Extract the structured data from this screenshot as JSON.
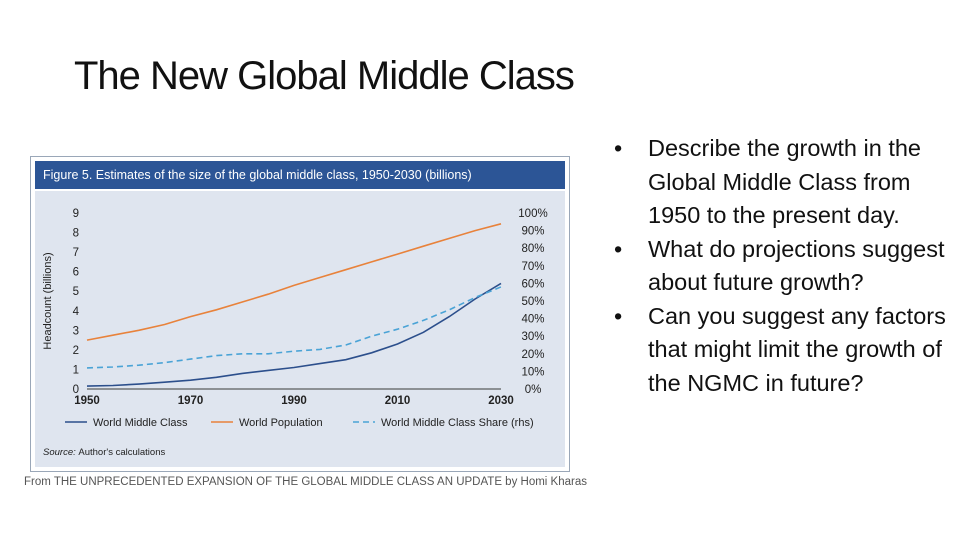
{
  "slide": {
    "title": "The New Global Middle Class",
    "caption": "From THE UNPRECEDENTED EXPANSION OF THE GLOBAL MIDDLE CLASS AN UPDATE by Homi Kharas",
    "bullets": [
      "Describe the growth in the Global Middle Class from 1950 to the present day.",
      "What do projections suggest about future growth?",
      "Can you suggest any factors that might limit the growth of the NGMC in future?"
    ],
    "bullet_symbol": "•"
  },
  "colors": {
    "header_bg": "#2c5596",
    "plot_bg": "#dfe5ef",
    "middle_class": "#2c4f8c",
    "population": "#e8823b",
    "share": "#4aa3d6"
  },
  "chart_data": {
    "type": "line",
    "title": "Figure 5. Estimates of the size of the global middle class, 1950-2030 (billions)",
    "ylabel": "Headcount (billions)",
    "xlim": [
      1950,
      2030
    ],
    "ylim": [
      0,
      9
    ],
    "y2lim": [
      0,
      100
    ],
    "x_ticks": [
      "1950",
      "1970",
      "1990",
      "2010",
      "2030"
    ],
    "y_ticks": [
      "0",
      "1",
      "2",
      "3",
      "4",
      "5",
      "6",
      "7",
      "8",
      "9"
    ],
    "y2_ticks": [
      "0%",
      "10%",
      "20%",
      "30%",
      "40%",
      "50%",
      "60%",
      "70%",
      "80%",
      "90%",
      "100%"
    ],
    "source_label": "Source:",
    "source_text": "Author's calculations",
    "series": [
      {
        "name": "World Middle Class",
        "axis": "left",
        "style": "solid",
        "x": [
          1950,
          1955,
          1960,
          1965,
          1970,
          1975,
          1980,
          1985,
          1990,
          1995,
          2000,
          2005,
          2010,
          2015,
          2020,
          2025,
          2030
        ],
        "values": [
          0.15,
          0.18,
          0.25,
          0.35,
          0.45,
          0.6,
          0.8,
          0.95,
          1.1,
          1.3,
          1.5,
          1.85,
          2.3,
          2.9,
          3.7,
          4.6,
          5.4
        ]
      },
      {
        "name": "World Population",
        "axis": "left",
        "style": "solid",
        "x": [
          1950,
          1955,
          1960,
          1965,
          1970,
          1975,
          1980,
          1985,
          1990,
          1995,
          2000,
          2005,
          2010,
          2015,
          2020,
          2025,
          2030
        ],
        "values": [
          2.5,
          2.75,
          3.0,
          3.3,
          3.7,
          4.05,
          4.45,
          4.85,
          5.3,
          5.7,
          6.1,
          6.5,
          6.9,
          7.3,
          7.7,
          8.1,
          8.45
        ]
      },
      {
        "name": "World Middle Class Share (rhs)",
        "axis": "right",
        "style": "dashed",
        "x": [
          1950,
          1955,
          1960,
          1965,
          1970,
          1975,
          1980,
          1985,
          1990,
          1995,
          2000,
          2005,
          2010,
          2015,
          2020,
          2025,
          2030
        ],
        "values": [
          12,
          12.5,
          13.5,
          15,
          17,
          19,
          20,
          20,
          21.5,
          22.5,
          25,
          30,
          34,
          39,
          45,
          52,
          58
        ]
      }
    ]
  }
}
